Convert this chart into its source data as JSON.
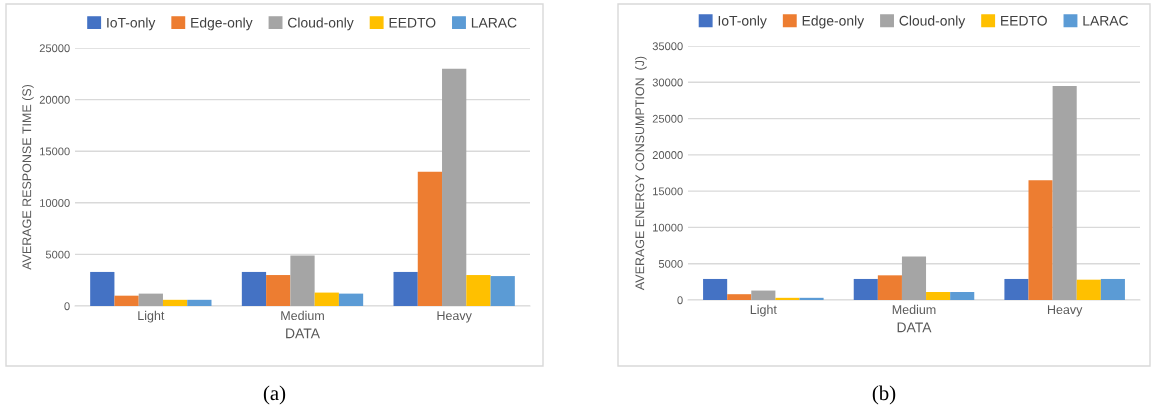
{
  "chart_data": [
    {
      "type": "bar",
      "xlabel": "DATA",
      "ylabel": "AVERAGE RESPONSE TIME (S)",
      "categories": [
        "Light",
        "Medium",
        "Heavy"
      ],
      "series": [
        {
          "name": "IoT-only",
          "color": "#4472c4",
          "values": [
            3300,
            3300,
            3300
          ]
        },
        {
          "name": "Edge-only",
          "color": "#ed7d31",
          "values": [
            1000,
            3000,
            13000
          ]
        },
        {
          "name": "Cloud-only",
          "color": "#a5a5a5",
          "values": [
            1200,
            4900,
            23000
          ]
        },
        {
          "name": "EEDTO",
          "color": "#ffc000",
          "values": [
            600,
            1300,
            3000
          ]
        },
        {
          "name": "LARAC",
          "color": "#5b9bd5",
          "values": [
            600,
            1200,
            2900
          ]
        }
      ],
      "ylim": [
        0,
        25000
      ],
      "yticks": [
        0,
        5000,
        10000,
        15000,
        20000,
        25000
      ],
      "grid": "y",
      "legend": "top",
      "annotations": [
        "(a)"
      ]
    },
    {
      "type": "bar",
      "xlabel": "DATA",
      "ylabel": "AVERAGE ENERGY CONSUMPTION  (J)",
      "categories": [
        "Light",
        "Medium",
        "Heavy"
      ],
      "series": [
        {
          "name": "IoT-only",
          "color": "#4472c4",
          "values": [
            2900,
            2900,
            2900
          ]
        },
        {
          "name": "Edge-only",
          "color": "#ed7d31",
          "values": [
            800,
            3400,
            16500
          ]
        },
        {
          "name": "Cloud-only",
          "color": "#a5a5a5",
          "values": [
            1300,
            6000,
            29500
          ]
        },
        {
          "name": "EEDTO",
          "color": "#ffc000",
          "values": [
            300,
            1100,
            2800
          ]
        },
        {
          "name": "LARAC",
          "color": "#5b9bd5",
          "values": [
            300,
            1100,
            2900
          ]
        }
      ],
      "ylim": [
        0,
        35000
      ],
      "yticks": [
        0,
        5000,
        10000,
        15000,
        20000,
        25000,
        30000,
        35000
      ],
      "grid": "y",
      "legend": "top",
      "annotations": [
        "(b)"
      ]
    }
  ]
}
